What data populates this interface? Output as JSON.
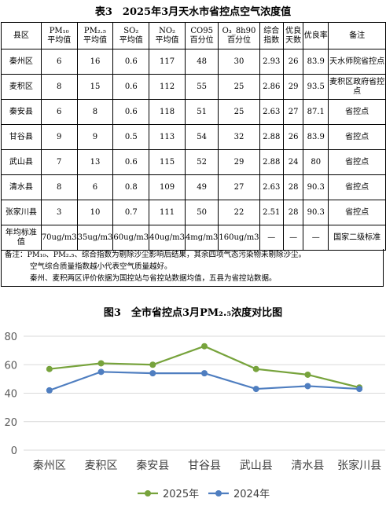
{
  "table": {
    "title": "表3　2025年3月天水市省控点空气浓度值",
    "header": [
      [
        "县区"
      ],
      [
        "PM₁₀",
        "平均值"
      ],
      [
        "PM₂.₅",
        "平均值"
      ],
      [
        "SO₂",
        "平均值"
      ],
      [
        "NO₂",
        "平均值"
      ],
      [
        "CO95",
        "百分位"
      ],
      [
        "O₃_8h90",
        "百分位"
      ],
      [
        "综合",
        "指数"
      ],
      [
        "优良",
        "天数"
      ],
      [
        "优良率"
      ],
      [
        "备注"
      ]
    ],
    "rows": [
      [
        "秦州区",
        "6",
        "16",
        "0.6",
        "117",
        "48",
        "30",
        "2.93",
        "26",
        "83.9",
        "天水师院省控点"
      ],
      [
        "麦积区",
        "8",
        "15",
        "0.6",
        "112",
        "55",
        "25",
        "2.86",
        "29",
        "93.5",
        "麦积区政府省控点"
      ],
      [
        "秦安县",
        "6",
        "8",
        "0.6",
        "118",
        "51",
        "25",
        "2.63",
        "27",
        "87.1",
        "省控点"
      ],
      [
        "甘谷县",
        "9",
        "9",
        "0.5",
        "113",
        "54",
        "32",
        "2.88",
        "26",
        "83.9",
        "省控点"
      ],
      [
        "武山县",
        "7",
        "13",
        "0.6",
        "115",
        "52",
        "29",
        "2.88",
        "24",
        "80",
        "省控点"
      ],
      [
        "清水县",
        "8",
        "6",
        "0.8",
        "109",
        "49",
        "27",
        "2.63",
        "28",
        "90.3",
        "省控点"
      ],
      [
        "张家川县",
        "3",
        "10",
        "0.7",
        "111",
        "50",
        "22",
        "2.51",
        "28",
        "90.3",
        "省控点"
      ],
      [
        "年均标准值",
        "70ug/m3",
        "35ug/m3",
        "60ug/m3",
        "40ug/m3",
        "4mg/m3",
        "160ug/m3",
        "—",
        "—",
        "—",
        "国家二级标准"
      ]
    ],
    "notes": [
      "备注：PM₁₀、PM₂.₅、综合指数为剔除沙尘影响后结果，其余四项气态污染物未剔除沙尘。",
      "空气综合质量指数越小代表空气质量越好。",
      "秦州、麦积两区评价依据为国控站与省控站数据均值，五县为省控站数据。"
    ]
  },
  "chart_data": {
    "type": "line",
    "title": "图3　全市省控点3月PM₂.₅浓度对比图",
    "categories": [
      "秦州区",
      "麦积区",
      "秦安县",
      "甘谷县",
      "武山县",
      "清水县",
      "张家川县"
    ],
    "series": [
      {
        "name": "2025年",
        "color": "#77a33c",
        "values": [
          57,
          61,
          60,
          73,
          57,
          53,
          44
        ]
      },
      {
        "name": "2024年",
        "color": "#4f7ec0",
        "values": [
          42,
          55,
          54,
          54,
          43,
          45,
          43
        ]
      }
    ],
    "ylim": [
      0,
      80
    ],
    "yticks": [
      0,
      20,
      40,
      60,
      80
    ],
    "grid": true,
    "legend": "bottom"
  }
}
